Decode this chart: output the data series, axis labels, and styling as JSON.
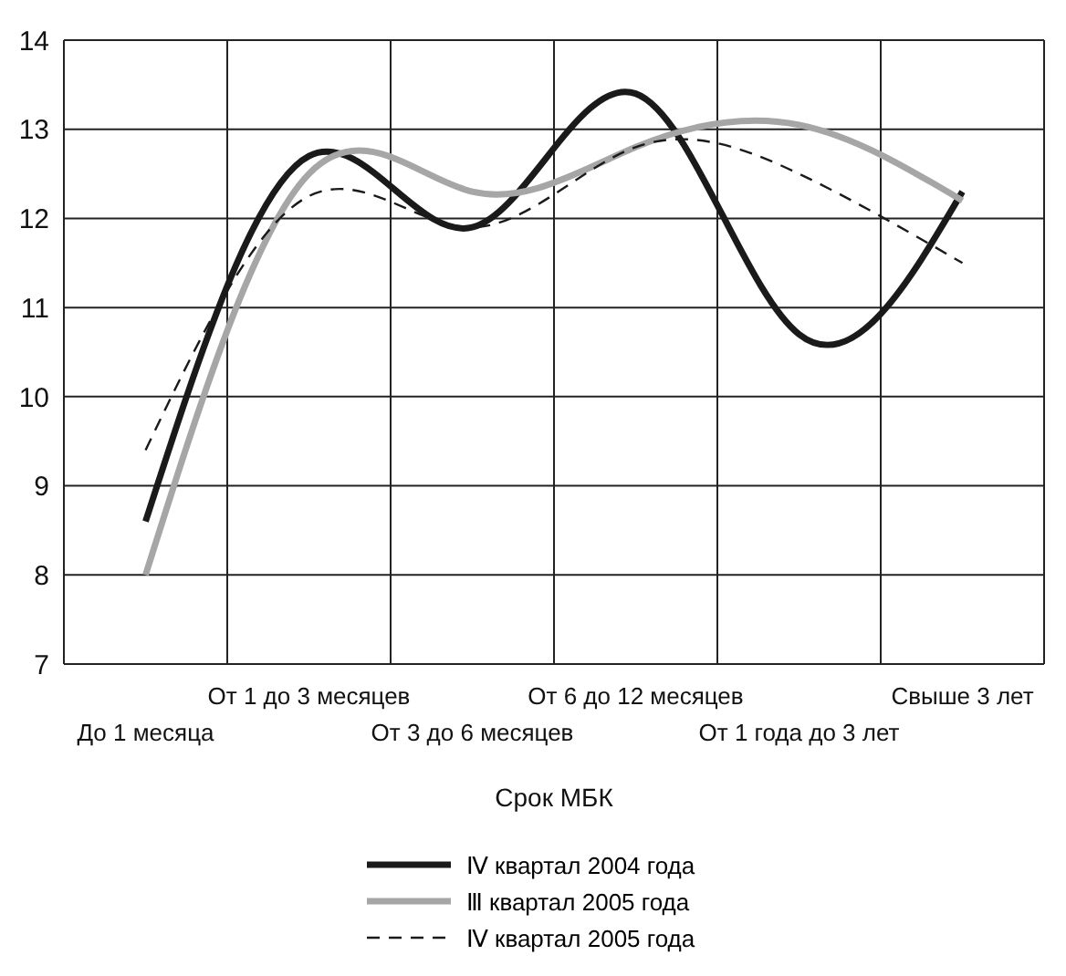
{
  "chart_data": {
    "type": "line",
    "xlabel": "Срок МБК",
    "categories": [
      "До 1 месяца",
      "От 1 до 3 месяцев",
      "От 3 до 6 месяцев",
      "От 6 до 12 месяцев",
      "От 1 года до 3 лет",
      "Свыше 3 лет"
    ],
    "series": [
      {
        "name": "Ⅳ квартал 2004 года",
        "color": "#1a1a1a",
        "line_style": "solid",
        "values": [
          8.6,
          12.7,
          11.9,
          13.4,
          10.7,
          12.3
        ]
      },
      {
        "name": "Ⅲ квартал 2005 года",
        "color": "#a6a6a6",
        "line_style": "solid",
        "values": [
          8.0,
          12.5,
          12.3,
          12.8,
          13.05,
          12.2
        ]
      },
      {
        "name": "Ⅳ квартал 2005 года",
        "color": "#1a1a1a",
        "line_style": "dashed",
        "values": [
          9.4,
          12.25,
          11.9,
          12.8,
          12.5,
          11.5
        ]
      }
    ],
    "ylim": [
      7,
      14
    ],
    "yticks": [
      7,
      8,
      9,
      10,
      11,
      12,
      13,
      14
    ],
    "grid": true,
    "legend": "bottom",
    "marker": "none"
  }
}
